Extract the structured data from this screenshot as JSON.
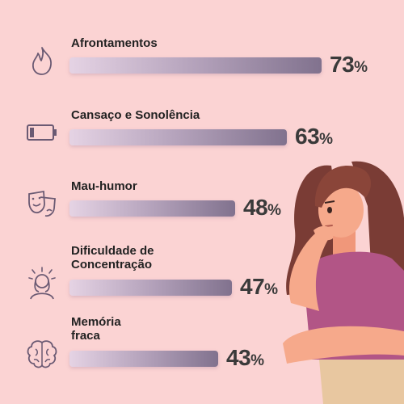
{
  "chart_data": {
    "type": "bar",
    "orientation": "horizontal",
    "categories": [
      "Afrontamentos",
      "Cansaço e Sonolência",
      "Mau-humor",
      "Dificuldade de\nConcentração",
      "Memória\nfraca"
    ],
    "values": [
      73,
      63,
      48,
      47,
      43
    ],
    "value_labels": [
      "73",
      "63",
      "48",
      "47",
      "43"
    ],
    "unit": "%",
    "xlim": [
      0,
      100
    ],
    "grid": false,
    "legend": "none",
    "icons": [
      "flame-icon",
      "battery-low-icon",
      "theater-masks-icon",
      "stressed-person-icon",
      "brain-icon"
    ],
    "colors": {
      "background": "#fbd3d3",
      "bar_start": "#e5d3e4",
      "bar_end": "#81728e",
      "label_text": "#222222",
      "value_text": "#3a3a3a",
      "icon_stroke": "#6b5a73",
      "shirt": "#b25586",
      "hair": "#7a3c35",
      "skin": "#f6a98b"
    }
  }
}
